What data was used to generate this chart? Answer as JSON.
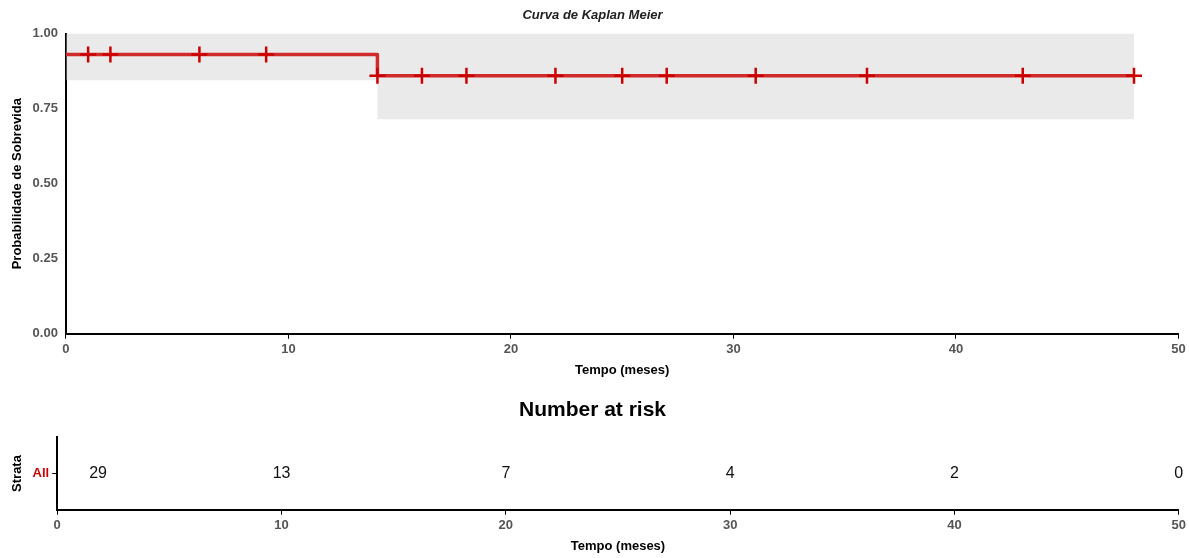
{
  "chart_data": [
    {
      "type": "step",
      "title": "Curva de Kaplan Meier",
      "xlabel": "Tempo (meses)",
      "ylabel": "Probabilidade de Sobrevida",
      "xlim": [
        0,
        50
      ],
      "xticks": [
        0,
        10,
        20,
        30,
        40,
        50
      ],
      "ylim": [
        0,
        1
      ],
      "yticks": [
        {
          "value": 0,
          "label": "0.00"
        },
        {
          "value": 0.25,
          "label": "0.25"
        },
        {
          "value": 0.5,
          "label": "0.50"
        },
        {
          "value": 0.75,
          "label": "0.75"
        },
        {
          "value": 1,
          "label": "1.00"
        }
      ],
      "grid": false,
      "legend": false,
      "series": [
        {
          "type": "step",
          "color": "#d02a2a",
          "marker": "none",
          "x": [
            0,
            14,
            48
          ],
          "values": [
            0.93,
            0.86,
            0.86
          ],
          "lower": [
            0.845,
            0.715,
            0.715
          ],
          "upper": [
            1,
            1,
            1
          ]
        },
        {
          "type": "scatter",
          "color": "#cc0000",
          "marker": "cross",
          "x": [
            1,
            2,
            6,
            9,
            14,
            16,
            18,
            22,
            25,
            27,
            31,
            36,
            43,
            48
          ],
          "values": [
            0.93,
            0.93,
            0.93,
            0.93,
            0.86,
            0.86,
            0.86,
            0.86,
            0.86,
            0.86,
            0.86,
            0.86,
            0.86,
            0.86
          ]
        }
      ]
    },
    {
      "type": "heatmap",
      "title": "Number at risk",
      "xlabel": "Tempo (meses)",
      "ylabel": "Strata",
      "categories": [
        "0",
        "10",
        "20",
        "30",
        "40",
        "50"
      ],
      "y_categories": [
        "All"
      ],
      "cells": [
        [
          29,
          13,
          7,
          4,
          2,
          0
        ]
      ],
      "data_labels": true
    }
  ]
}
